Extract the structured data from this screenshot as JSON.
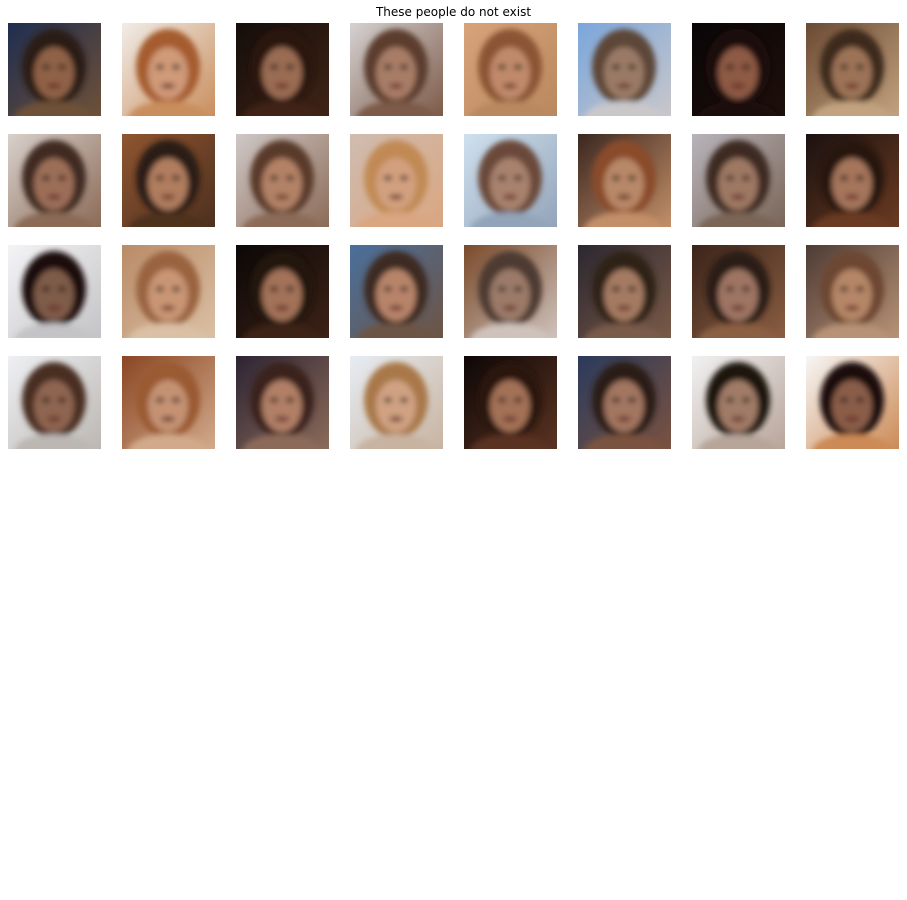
{
  "figure": {
    "title": "These people do not exist"
  },
  "grid": {
    "rows": 4,
    "cols": 8,
    "tiles": [
      {
        "bg": "#1f2d4f",
        "bg2": "#6e5138",
        "skin": "#8f6246",
        "hair": "#2b1a12"
      },
      {
        "bg": "#f1ede8",
        "bg2": "#c98e5d",
        "skin": "#cf9a78",
        "hair": "#a55b2d"
      },
      {
        "bg": "#140d0a",
        "bg2": "#3f2416",
        "skin": "#9a6c52",
        "hair": "#2b1710"
      },
      {
        "bg": "#d5d2d2",
        "bg2": "#7d5a48",
        "skin": "#a87d66",
        "hair": "#5b3d2f"
      },
      {
        "bg": "#d7a37a",
        "bg2": "#b9885f",
        "skin": "#c08a6a",
        "hair": "#8b5535"
      },
      {
        "bg": "#7aa6dc",
        "bg2": "#c9c7ca",
        "skin": "#9a7a66",
        "hair": "#5d4637"
      },
      {
        "bg": "#090607",
        "bg2": "#1e0f0a",
        "skin": "#8d5a45",
        "hair": "#1a0e0a"
      },
      {
        "bg": "#6b4a33",
        "bg2": "#c2a27f",
        "skin": "#9c7357",
        "hair": "#3d2a1f"
      },
      {
        "bg": "#d8d1cc",
        "bg2": "#8b6a57",
        "skin": "#9c6e59",
        "hair": "#3f2a20"
      },
      {
        "bg": "#8f5530",
        "bg2": "#4d301f",
        "skin": "#b07d5f",
        "hair": "#2a1a12"
      },
      {
        "bg": "#cfc8c6",
        "bg2": "#8c6b58",
        "skin": "#b38266",
        "hair": "#5a3b2b"
      },
      {
        "bg": "#cfbcb0",
        "bg2": "#d9a681",
        "skin": "#d2a07f",
        "hair": "#c18a55"
      },
      {
        "bg": "#cfe1ef",
        "bg2": "#93a4b9",
        "skin": "#a9826e",
        "hair": "#6b4a3a"
      },
      {
        "bg": "#3a2720",
        "bg2": "#c38f69",
        "skin": "#b88867",
        "hair": "#8a4b2a"
      },
      {
        "bg": "#b8b4bb",
        "bg2": "#7a6557",
        "skin": "#9e7863",
        "hair": "#3c2b24"
      },
      {
        "bg": "#1a1110",
        "bg2": "#6b3b22",
        "skin": "#a5755c",
        "hair": "#261610"
      },
      {
        "bg": "#f4f4f6",
        "bg2": "#c4c3c6",
        "skin": "#7f5b48",
        "hair": "#1b0f0b"
      },
      {
        "bg": "#b98b67",
        "bg2": "#dbc0a5",
        "skin": "#c99675",
        "hair": "#9a6440"
      },
      {
        "bg": "#0b0707",
        "bg2": "#3d2217",
        "skin": "#a37258",
        "hair": "#24140e"
      },
      {
        "bg": "#4a6f9c",
        "bg2": "#6d5444",
        "skin": "#b7846a",
        "hair": "#3c2a22"
      },
      {
        "bg": "#7a4a2a",
        "bg2": "#cfc2bc",
        "skin": "#9b7a69",
        "hair": "#4e3a31"
      },
      {
        "bg": "#2b2730",
        "bg2": "#7a5a48",
        "skin": "#a47a62",
        "hair": "#2f2019"
      },
      {
        "bg": "#3a2419",
        "bg2": "#8b5e42",
        "skin": "#9e7563",
        "hair": "#2a1a14"
      },
      {
        "bg": "#4d3b35",
        "bg2": "#b89276",
        "skin": "#b58667",
        "hair": "#6d4630"
      },
      {
        "bg": "#eef0f3",
        "bg2": "#bcb7b3",
        "skin": "#8e6551",
        "hair": "#4a2e20"
      },
      {
        "bg": "#8a4623",
        "bg2": "#d2aa8b",
        "skin": "#c49273",
        "hair": "#9a5a33"
      },
      {
        "bg": "#2c2433",
        "bg2": "#8c6b5a",
        "skin": "#b07f66",
        "hair": "#3a241b"
      },
      {
        "bg": "#e7edf4",
        "bg2": "#c8b3a0",
        "skin": "#d0a283",
        "hair": "#a97848"
      },
      {
        "bg": "#0d0707",
        "bg2": "#5a3321",
        "skin": "#a37156",
        "hair": "#2a170f"
      },
      {
        "bg": "#2a3a5c",
        "bg2": "#7a5240",
        "skin": "#a27660",
        "hair": "#2c1e17"
      },
      {
        "bg": "#f1f1f2",
        "bg2": "#b8a59a",
        "skin": "#a07b67",
        "hair": "#1d120d"
      },
      {
        "bg": "#f7f6f6",
        "bg2": "#cc8a56",
        "skin": "#8a5d48",
        "hair": "#1b0f0b"
      }
    ]
  }
}
